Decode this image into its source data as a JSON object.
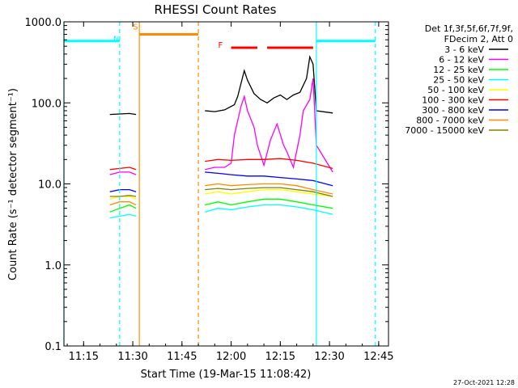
{
  "chart_data": {
    "type": "line",
    "title": "RHESSI Count Rates",
    "xlabel": "Start Time (19-Mar-15 11:08:42)",
    "ylabel": "Count Rate (s⁻¹ detector segment⁻¹)",
    "ylog": true,
    "ylim": [
      0.1,
      1000
    ],
    "xlim": [
      "11:09",
      "12:48"
    ],
    "x_ticks": [
      "11:15",
      "11:30",
      "11:45",
      "12:00",
      "12:15",
      "12:30",
      "12:45"
    ],
    "y_ticks": [
      "0.1",
      "1.0",
      "10.0",
      "100.0",
      "1000.0"
    ],
    "legend_position": "right",
    "legend_header": [
      "Det 1f,3f,5f,6f,7f,9f,",
      "FDecim 2, Att 0"
    ],
    "series": [
      {
        "name": "3 - 6 keV",
        "color": "#000000",
        "segments": [
          {
            "x": [
              "11:23",
              "11:26",
              "11:29",
              "11:31"
            ],
            "y": [
              72,
              73,
              74,
              72
            ]
          },
          {
            "x": [
              "11:52",
              "11:55",
              "11:58",
              "12:01",
              "12:02",
              "12:04",
              "12:05",
              "12:07",
              "12:09",
              "12:11",
              "12:13",
              "12:15",
              "12:17",
              "12:19",
              "12:21",
              "12:23",
              "12:24",
              "12:25",
              "12:26",
              "12:31"
            ],
            "y": [
              80,
              78,
              82,
              95,
              120,
              250,
              190,
              130,
              110,
              100,
              115,
              125,
              110,
              125,
              135,
              200,
              370,
              300,
              80,
              75
            ]
          }
        ]
      },
      {
        "name": "6 - 12 keV",
        "color": "#ff00ff",
        "segments": [
          {
            "x": [
              "11:23",
              "11:26",
              "11:29",
              "11:31"
            ],
            "y": [
              13,
              14,
              14,
              13
            ]
          },
          {
            "x": [
              "11:52",
              "11:55",
              "11:58",
              "12:00",
              "12:01",
              "12:03",
              "12:04",
              "12:05",
              "12:07",
              "12:08",
              "12:10",
              "12:12",
              "12:14",
              "12:16",
              "12:17",
              "12:19",
              "12:21",
              "12:22",
              "12:24",
              "12:25",
              "12:26",
              "12:31"
            ],
            "y": [
              15,
              16,
              16,
              18,
              40,
              90,
              120,
              80,
              50,
              30,
              17,
              35,
              55,
              30,
              25,
              16,
              40,
              80,
              110,
              200,
              30,
              14
            ]
          }
        ]
      },
      {
        "name": "12 - 25 keV",
        "color": "#00ff00",
        "segments": [
          {
            "x": [
              "11:23",
              "11:26",
              "11:29",
              "11:31"
            ],
            "y": [
              4.5,
              5,
              5.5,
              5
            ]
          },
          {
            "x": [
              "11:52",
              "11:56",
              "12:00",
              "12:05",
              "12:10",
              "12:15",
              "12:20",
              "12:25",
              "12:31"
            ],
            "y": [
              5.5,
              6,
              5.5,
              6,
              6.5,
              6.5,
              6,
              5.5,
              5
            ]
          }
        ]
      },
      {
        "name": "25 - 50 keV",
        "color": "#00ffff",
        "segments": [
          {
            "x": [
              "11:23",
              "11:26",
              "11:29",
              "11:31"
            ],
            "y": [
              3.8,
              4,
              4.2,
              4
            ]
          },
          {
            "x": [
              "11:52",
              "11:56",
              "12:00",
              "12:05",
              "12:10",
              "12:15",
              "12:20",
              "12:25",
              "12:31"
            ],
            "y": [
              4.5,
              5,
              4.8,
              5.2,
              5.5,
              5.5,
              5.2,
              4.8,
              4.2
            ]
          }
        ]
      },
      {
        "name": "50 - 100 keV",
        "color": "#ffff00",
        "segments": [
          {
            "x": [
              "11:23",
              "11:26",
              "11:29",
              "11:31"
            ],
            "y": [
              6.5,
              7,
              7,
              6.5
            ]
          },
          {
            "x": [
              "11:52",
              "11:56",
              "12:00",
              "12:05",
              "12:10",
              "12:15",
              "12:20",
              "12:25",
              "12:31"
            ],
            "y": [
              7.5,
              8,
              7.5,
              8,
              8.5,
              8.5,
              8,
              7.5,
              7
            ]
          }
        ]
      },
      {
        "name": "100 - 300 keV",
        "color": "#ff0000",
        "segments": [
          {
            "x": [
              "11:23",
              "11:26",
              "11:29",
              "11:31"
            ],
            "y": [
              15,
              15.5,
              16,
              15
            ]
          },
          {
            "x": [
              "11:52",
              "11:56",
              "12:00",
              "12:05",
              "12:10",
              "12:15",
              "12:20",
              "12:25",
              "12:31"
            ],
            "y": [
              19,
              20,
              19.5,
              20,
              20,
              20.5,
              19.5,
              18,
              15.5
            ]
          }
        ]
      },
      {
        "name": "300 - 800 keV",
        "color": "#0000ff",
        "segments": [
          {
            "x": [
              "11:23",
              "11:26",
              "11:29",
              "11:31"
            ],
            "y": [
              8,
              8.5,
              8.5,
              8
            ]
          },
          {
            "x": [
              "11:52",
              "11:56",
              "12:00",
              "12:05",
              "12:10",
              "12:15",
              "12:20",
              "12:25",
              "12:31"
            ],
            "y": [
              14,
              13.5,
              13,
              12.5,
              12.5,
              12,
              11.5,
              11,
              9.5
            ]
          }
        ]
      },
      {
        "name": "800 - 7000 keV",
        "color": "#ff8c00",
        "segments": [
          {
            "x": [
              "11:23",
              "11:26",
              "11:29",
              "11:31"
            ],
            "y": [
              5.5,
              6,
              6,
              5.5
            ]
          },
          {
            "x": [
              "11:52",
              "11:56",
              "12:00",
              "12:05",
              "12:10",
              "12:15",
              "12:20",
              "12:25",
              "12:31"
            ],
            "y": [
              9.5,
              10,
              9.5,
              9.8,
              10,
              10,
              9.5,
              8.5,
              7.5
            ]
          }
        ]
      },
      {
        "name": "7000 - 15000 keV",
        "color": "#808000",
        "segments": [
          {
            "x": [
              "11:23",
              "11:26",
              "11:29",
              "11:31"
            ],
            "y": [
              7,
              7,
              7.2,
              7
            ]
          },
          {
            "x": [
              "11:52",
              "11:56",
              "12:00",
              "12:05",
              "12:10",
              "12:15",
              "12:20",
              "12:25",
              "12:31"
            ],
            "y": [
              8.5,
              8.8,
              8.5,
              8.8,
              9,
              9,
              8.5,
              8,
              7
            ]
          }
        ]
      }
    ],
    "vlines": [
      {
        "x": "11:09",
        "color": "#00ffff",
        "style": "solid"
      },
      {
        "x": "11:26",
        "color": "#00ffff",
        "style": "dashed"
      },
      {
        "x": "11:32",
        "color": "#ff8c00",
        "style": "solid"
      },
      {
        "x": "11:50",
        "color": "#ff8c00",
        "style": "dashed"
      },
      {
        "x": "12:26",
        "color": "#00ffff",
        "style": "solid"
      },
      {
        "x": "12:44",
        "color": "#00ffff",
        "style": "dashed"
      }
    ],
    "hbars": [
      {
        "x": [
          "11:09",
          "11:26"
        ],
        "y": 580,
        "color": "#00ffff"
      },
      {
        "x": [
          "11:32",
          "11:50"
        ],
        "y": 700,
        "color": "#ff8c00"
      },
      {
        "x": [
          "12:26",
          "12:44"
        ],
        "y": 580,
        "color": "#00ffff"
      },
      {
        "x": [
          "12:00",
          "12:08"
        ],
        "y": 480,
        "color": "#ff0000"
      },
      {
        "x": [
          "12:11",
          "12:25"
        ],
        "y": 480,
        "color": "#ff0000"
      }
    ],
    "annotations": [
      {
        "text": "N",
        "x": "11:26",
        "y": 570,
        "color": "#00ffff"
      },
      {
        "text": "S",
        "x": "11:32",
        "y": 800,
        "color": "#ff8c00"
      },
      {
        "text": "F",
        "x": "11:58",
        "y": 480,
        "color": "#ff0000"
      }
    ]
  },
  "footer_timestamp": "27-Oct-2021 12:28"
}
